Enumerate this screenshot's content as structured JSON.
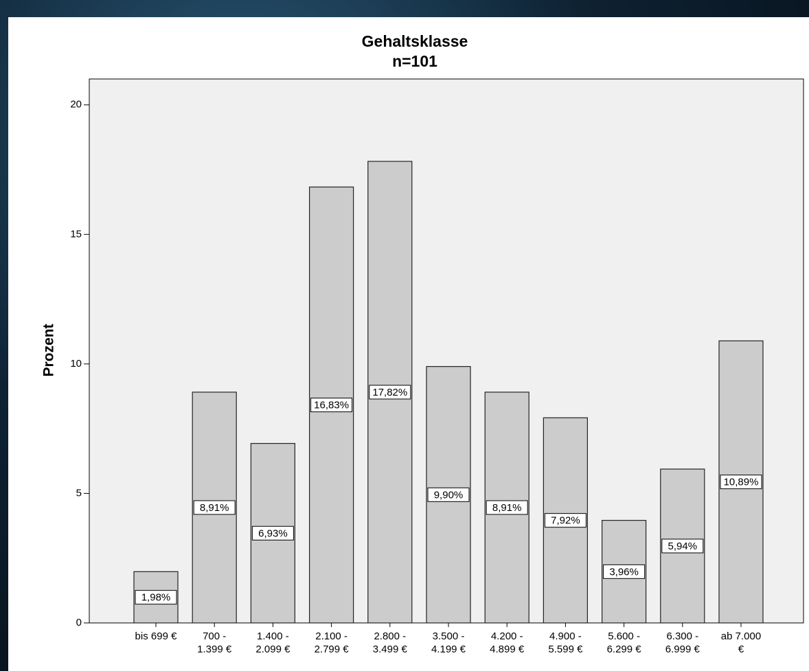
{
  "chart_data": {
    "type": "bar",
    "title": "Gehaltsklasse",
    "subtitle": "n=101",
    "y_label": "Prozent",
    "categories": [
      [
        "bis 699 €"
      ],
      [
        "700 -",
        "1.399 €"
      ],
      [
        "1.400 -",
        "2.099 €"
      ],
      [
        "2.100 -",
        "2.799 €"
      ],
      [
        "2.800 -",
        "3.499 €"
      ],
      [
        "3.500 -",
        "4.199 €"
      ],
      [
        "4.200 -",
        "4.899 €"
      ],
      [
        "4.900 -",
        "5.599 €"
      ],
      [
        "5.600 -",
        "6.299 €"
      ],
      [
        "6.300 -",
        "6.999 €"
      ],
      [
        "ab 7.000",
        "€"
      ]
    ],
    "values": [
      1.98,
      8.91,
      6.93,
      16.83,
      17.82,
      9.9,
      8.91,
      7.92,
      3.96,
      5.94,
      10.89
    ],
    "value_labels": [
      "1,98%",
      "8,91%",
      "6,93%",
      "16,83%",
      "17,82%",
      "9,90%",
      "8,91%",
      "7,92%",
      "3,96%",
      "5,94%",
      "10,89%"
    ],
    "color": "#cccccc",
    "ylim": [
      0,
      21
    ],
    "yticks": [
      0,
      5,
      10,
      15,
      20
    ]
  }
}
